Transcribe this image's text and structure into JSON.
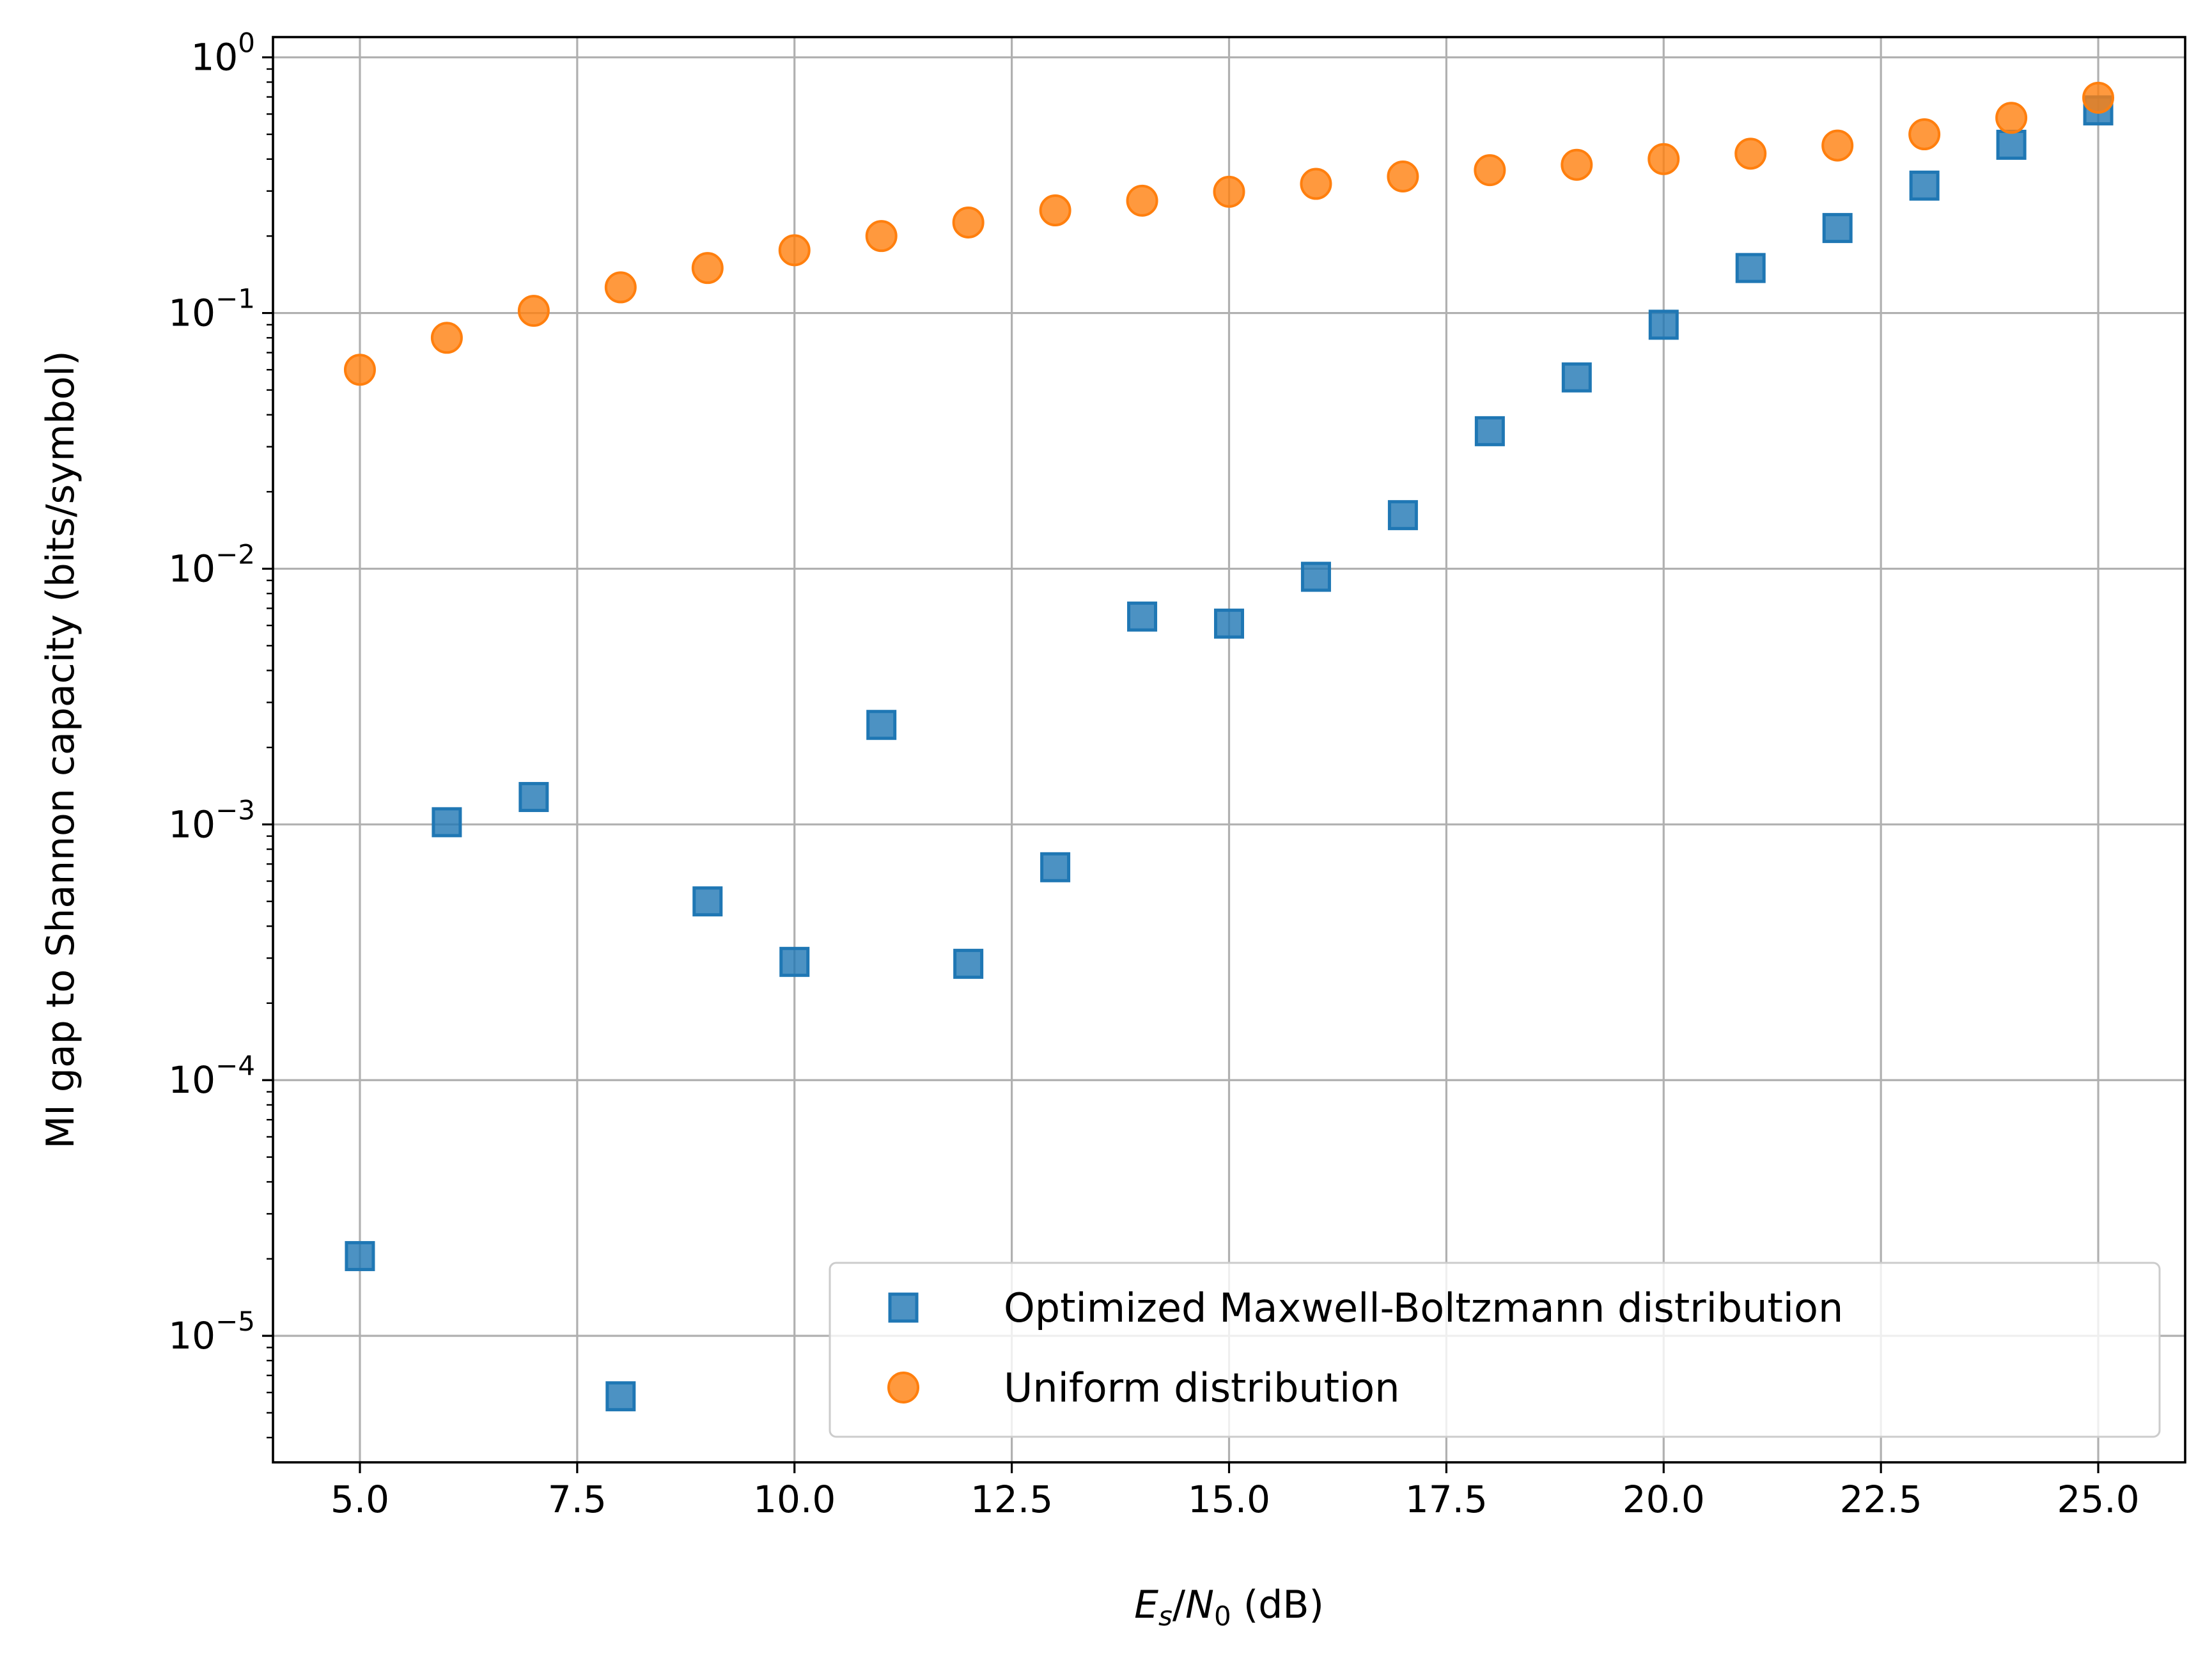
{
  "chart_data": {
    "type": "scatter",
    "xlabel_parts": {
      "e": "E",
      "s": "s",
      "slash": "/",
      "n": "N",
      "zero": "0",
      "unit": " (dB)"
    },
    "ylabel": "MI gap to Shannon capacity (bits/symbol)",
    "yscale": "log",
    "xlim": [
      4.0,
      26.0
    ],
    "ylim": [
      3.2e-06,
      1.2
    ],
    "grid": true,
    "x_ticks": [
      "5.0",
      "7.5",
      "10.0",
      "12.5",
      "15.0",
      "17.5",
      "20.0",
      "22.5",
      "25.0"
    ],
    "x_tick_values": [
      5.0,
      7.5,
      10.0,
      12.5,
      15.0,
      17.5,
      20.0,
      22.5,
      25.0
    ],
    "y_tick_exponents": [
      0,
      -1,
      -2,
      -3,
      -4,
      -5
    ],
    "y_tick_base": "10",
    "legend_position": "lower-right",
    "series": [
      {
        "name": "Optimized Maxwell-Boltzmann distribution",
        "marker": "square",
        "color": "#1f77b4",
        "x": [
          5,
          6,
          7,
          8,
          9,
          10,
          11,
          12,
          13,
          14,
          15,
          16,
          17,
          18,
          19,
          20,
          21,
          22,
          23,
          24,
          25
        ],
        "y": [
          2.05e-05,
          0.00102,
          0.00128,
          5.8e-06,
          0.0005,
          0.00029,
          0.00245,
          0.000285,
          0.00068,
          0.0065,
          0.0061,
          0.0093,
          0.0162,
          0.0345,
          0.056,
          0.09,
          0.15,
          0.215,
          0.315,
          0.455,
          0.62
        ]
      },
      {
        "name": "Uniform distribution",
        "marker": "circle",
        "color": "#ff7f0e",
        "x": [
          5,
          6,
          7,
          8,
          9,
          10,
          11,
          12,
          13,
          14,
          15,
          16,
          17,
          18,
          19,
          20,
          21,
          22,
          23,
          24,
          25
        ],
        "y": [
          0.06,
          0.08,
          0.102,
          0.126,
          0.15,
          0.176,
          0.2,
          0.226,
          0.252,
          0.275,
          0.298,
          0.32,
          0.342,
          0.362,
          0.38,
          0.4,
          0.42,
          0.452,
          0.5,
          0.58,
          0.695
        ]
      }
    ]
  }
}
